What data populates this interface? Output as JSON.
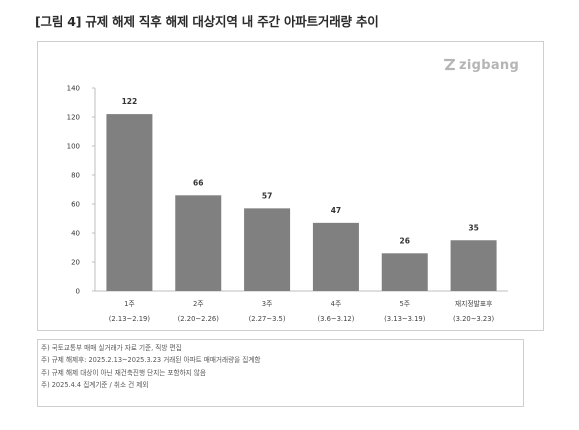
{
  "figure_title": "[그림 4] 규제 해제 직후 해제 대상지역 내 주간 아파트거래량 추이",
  "brand": {
    "name": "zigbang",
    "icon": "zigbang-logo-icon"
  },
  "chart_data": {
    "type": "bar",
    "title": "",
    "xlabel": "",
    "ylabel": "",
    "ylim": [
      0,
      140
    ],
    "yticks": [
      0,
      20,
      40,
      60,
      80,
      100,
      120,
      140
    ],
    "grid": false,
    "bar_color": "#808080",
    "categories": [
      {
        "label": "1주",
        "range": "(2.13~2.19)"
      },
      {
        "label": "2주",
        "range": "(2.20~2.26)"
      },
      {
        "label": "3주",
        "range": "(2.27~3.5)"
      },
      {
        "label": "4주",
        "range": "(3.6~3.12)"
      },
      {
        "label": "5주",
        "range": "(3.13~3.19)"
      },
      {
        "label": "재지정발표후",
        "range": "(3.20~3.23)"
      }
    ],
    "values": [
      122,
      66,
      57,
      47,
      26,
      35
    ]
  },
  "notes": [
    "주) 국토교통부 매매 실거래가 자료 기준, 직방 편집",
    "주) 규제 해제후: 2025.2.13~2025.3.23 거래된 아파트 매매거래량을 집계함",
    "주) 규제 해제 대상이 아닌 재건축진행 단지는 포함하지 않음",
    "주) 2025.4.4 집계기준 / 취소 건 제외"
  ]
}
